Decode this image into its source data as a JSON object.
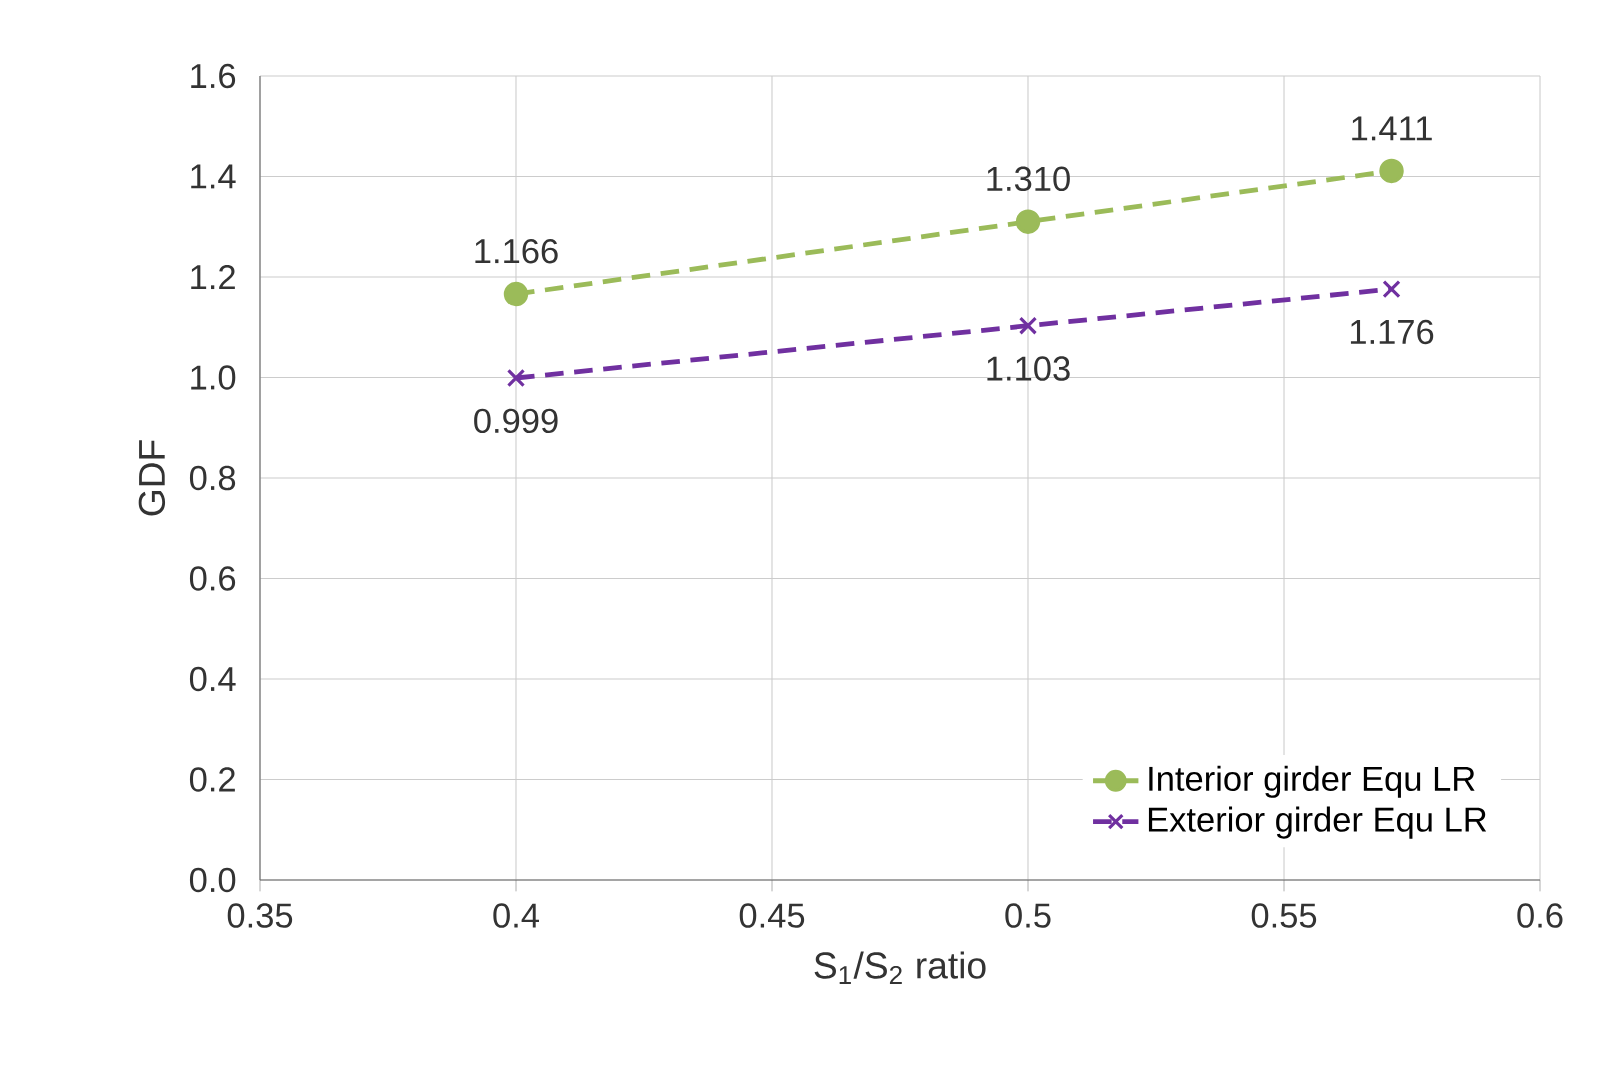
{
  "chart_data": {
    "type": "line",
    "xlabel": "S$_{1}$/S$_{2}$ ratio",
    "ylabel": "GDF",
    "x": [
      0.4,
      0.5,
      0.571
    ],
    "series": [
      {
        "name": "Interior girder Equ LR",
        "color": "#9bbb59",
        "marker": "circle",
        "line_style": "dashed",
        "values": [
          1.166,
          1.31,
          1.411
        ],
        "value_labels": [
          "1.166",
          "1.310",
          "1.411"
        ]
      },
      {
        "name": "Exterior girder Equ LR",
        "color": "#7030a0",
        "marker": "cross",
        "line_style": "dashed",
        "values": [
          0.999,
          1.103,
          1.176
        ],
        "value_labels": [
          "0.999",
          "1.103",
          "1.176"
        ]
      }
    ],
    "xlim": [
      0.35,
      0.6
    ],
    "xticks": [
      0.35,
      0.4,
      0.45,
      0.5,
      0.55,
      0.6
    ],
    "ylim": [
      0,
      1.6
    ],
    "yticks": [
      {
        "value": 0,
        "label": "0.0"
      },
      {
        "value": 0.2,
        "label": "0.2"
      },
      {
        "value": 0.4,
        "label": "0.4"
      },
      {
        "value": 0.6,
        "label": "0.6"
      },
      {
        "value": 0.8,
        "label": "0.8"
      },
      {
        "value": 1.0,
        "label": "1.0"
      },
      {
        "value": 1.2,
        "label": "1.2"
      },
      {
        "value": 1.4,
        "label": "1.4"
      },
      {
        "value": 1.6,
        "label": "1.6"
      }
    ],
    "grid": true,
    "legend": "bottom right"
  }
}
